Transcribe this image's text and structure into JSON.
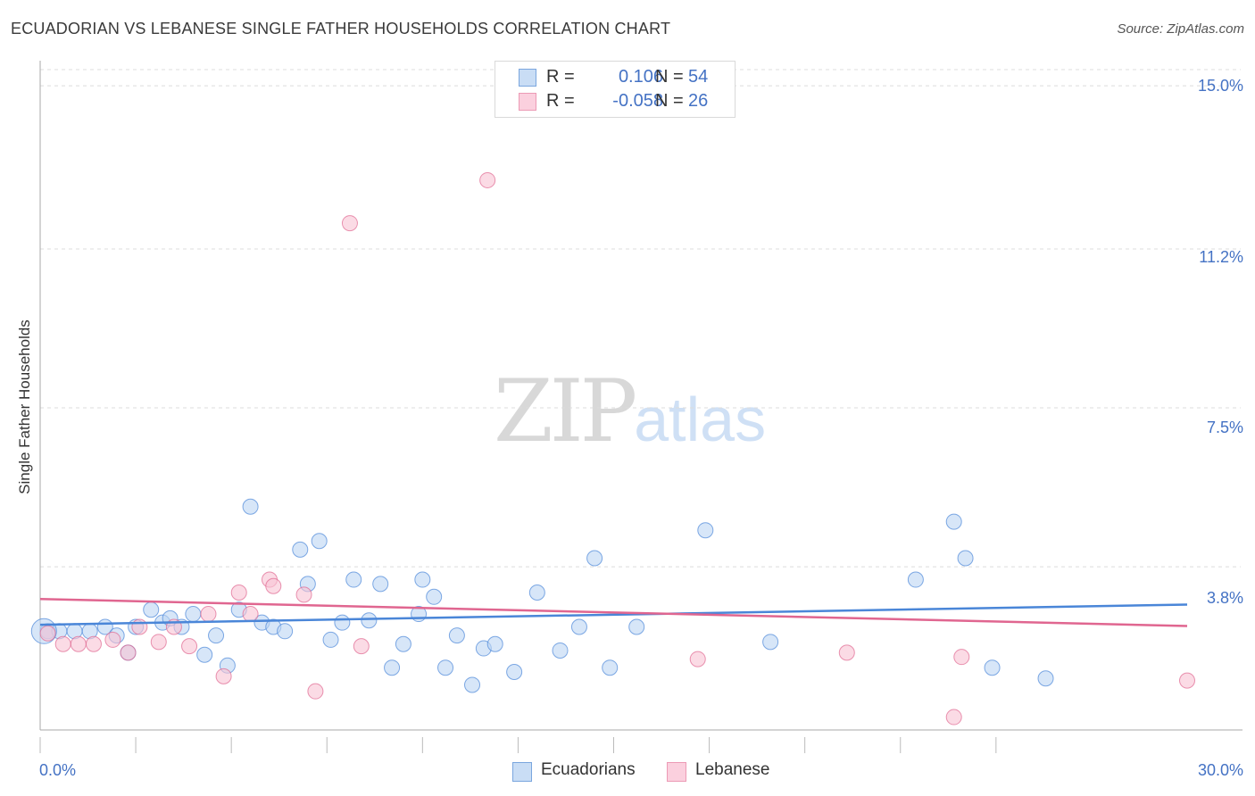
{
  "title": "ECUADORIAN VS LEBANESE SINGLE FATHER HOUSEHOLDS CORRELATION CHART",
  "source": "Source: ZipAtlas.com",
  "watermark": {
    "zip": "ZIP",
    "atlas": "atlas"
  },
  "legend": {
    "rows": [
      {
        "r_label": "R =",
        "r_value": "0.106",
        "n_label": "N =",
        "n_value": "54",
        "color": "#9dc3ec"
      },
      {
        "r_label": "R =",
        "r_value": "-0.058",
        "n_label": "N =",
        "n_value": "26",
        "color": "#f4a9c1"
      }
    ]
  },
  "bottom_legend": [
    {
      "label": "Ecuadorians",
      "color": "#9dc3ec"
    },
    {
      "label": "Lebanese",
      "color": "#f4a9c1"
    }
  ],
  "chart_data": {
    "type": "scatter",
    "title": "ECUADORIAN VS LEBANESE SINGLE FATHER HOUSEHOLDS CORRELATION CHART",
    "xlabel": "",
    "ylabel": "Single Father Households",
    "xlim": [
      0,
      30
    ],
    "ylim": [
      0,
      15.5
    ],
    "x_tick_labels": {
      "min": "0.0%",
      "max": "30.0%"
    },
    "y_ticks": [
      3.8,
      7.5,
      11.2,
      15.0
    ],
    "y_tick_labels": [
      "3.8%",
      "7.5%",
      "11.2%",
      "15.0%"
    ],
    "grid": true,
    "series": [
      {
        "name": "Ecuadorians",
        "color": "#4a86d8",
        "fill": "#bcd6f3",
        "trend": {
          "x": [
            0,
            30
          ],
          "y": [
            2.45,
            2.92
          ]
        },
        "points": [
          [
            0.2,
            2.3
          ],
          [
            0.5,
            2.3
          ],
          [
            0.9,
            2.3
          ],
          [
            1.3,
            2.3
          ],
          [
            1.7,
            2.4
          ],
          [
            2.0,
            2.2
          ],
          [
            2.3,
            1.8
          ],
          [
            2.5,
            2.4
          ],
          [
            2.9,
            2.8
          ],
          [
            3.2,
            2.5
          ],
          [
            3.4,
            2.6
          ],
          [
            3.7,
            2.4
          ],
          [
            4.0,
            2.7
          ],
          [
            4.3,
            1.75
          ],
          [
            4.6,
            2.2
          ],
          [
            4.9,
            1.5
          ],
          [
            5.2,
            2.8
          ],
          [
            5.5,
            5.2
          ],
          [
            5.8,
            2.5
          ],
          [
            6.1,
            2.4
          ],
          [
            6.4,
            2.3
          ],
          [
            6.8,
            4.2
          ],
          [
            7.0,
            3.4
          ],
          [
            7.3,
            4.4
          ],
          [
            7.6,
            2.1
          ],
          [
            7.9,
            2.5
          ],
          [
            8.2,
            3.5
          ],
          [
            8.6,
            2.55
          ],
          [
            8.9,
            3.4
          ],
          [
            9.2,
            1.45
          ],
          [
            9.5,
            2.0
          ],
          [
            9.9,
            2.7
          ],
          [
            10.0,
            3.5
          ],
          [
            10.3,
            3.1
          ],
          [
            10.6,
            1.45
          ],
          [
            10.9,
            2.2
          ],
          [
            11.3,
            1.05
          ],
          [
            11.6,
            1.9
          ],
          [
            11.9,
            2.0
          ],
          [
            12.4,
            1.35
          ],
          [
            13.0,
            3.2
          ],
          [
            13.6,
            1.85
          ],
          [
            14.1,
            2.4
          ],
          [
            14.5,
            4.0
          ],
          [
            14.9,
            1.45
          ],
          [
            15.6,
            2.4
          ],
          [
            17.4,
            4.65
          ],
          [
            19.1,
            2.05
          ],
          [
            22.9,
            3.5
          ],
          [
            23.9,
            4.85
          ],
          [
            24.2,
            4.0
          ],
          [
            24.9,
            1.45
          ],
          [
            26.3,
            1.2
          ],
          [
            0.1,
            2.3
          ]
        ]
      },
      {
        "name": "Lebanese",
        "color": "#e06690",
        "fill": "#f8c3d4",
        "trend": {
          "x": [
            0,
            30
          ],
          "y": [
            3.05,
            2.42
          ]
        },
        "points": [
          [
            0.2,
            2.25
          ],
          [
            0.6,
            2.0
          ],
          [
            1.0,
            2.0
          ],
          [
            1.4,
            2.0
          ],
          [
            1.9,
            2.1
          ],
          [
            2.3,
            1.8
          ],
          [
            2.6,
            2.4
          ],
          [
            3.1,
            2.05
          ],
          [
            3.5,
            2.4
          ],
          [
            3.9,
            1.95
          ],
          [
            4.4,
            2.7
          ],
          [
            4.8,
            1.25
          ],
          [
            5.2,
            3.2
          ],
          [
            5.5,
            2.7
          ],
          [
            6.0,
            3.5
          ],
          [
            6.1,
            3.35
          ],
          [
            6.9,
            3.15
          ],
          [
            7.2,
            0.9
          ],
          [
            8.1,
            11.8
          ],
          [
            8.4,
            1.95
          ],
          [
            11.7,
            12.8
          ],
          [
            17.2,
            1.65
          ],
          [
            21.1,
            1.8
          ],
          [
            23.9,
            0.3
          ],
          [
            24.1,
            1.7
          ],
          [
            30.0,
            1.15
          ]
        ]
      }
    ]
  }
}
